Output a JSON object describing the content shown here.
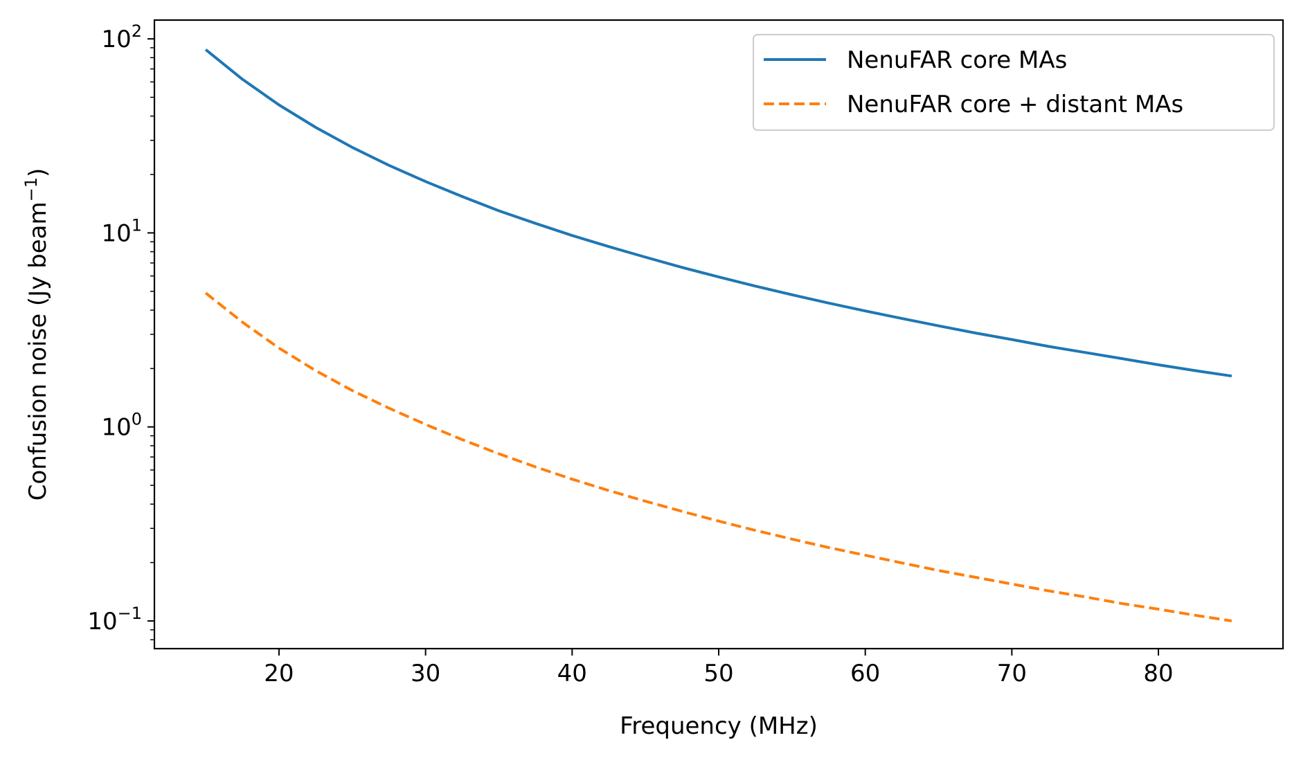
{
  "chart_data": {
    "type": "line",
    "title": "",
    "xlabel": "Frequency (MHz)",
    "ylabel_main": "Confusion noise (Jy beam",
    "ylabel_sup": "−1",
    "ylabel_close": ")",
    "xlim": [
      11.5,
      88.5
    ],
    "ylim": [
      0.072,
      125
    ],
    "yscale": "log",
    "grid": false,
    "legend_position": "top-right",
    "x_ticks": [
      20,
      30,
      40,
      50,
      60,
      70,
      80
    ],
    "x_tick_labels": [
      "20",
      "30",
      "40",
      "50",
      "60",
      "70",
      "80"
    ],
    "y_ticks": [
      0.1,
      1,
      10,
      100
    ],
    "y_tick_labels": [
      {
        "base": "10",
        "exp": "−1"
      },
      {
        "base": "10",
        "exp": "0"
      },
      {
        "base": "10",
        "exp": "1"
      },
      {
        "base": "10",
        "exp": "2"
      }
    ],
    "x": [
      15,
      17.5,
      20,
      22.5,
      25,
      27.5,
      30,
      32.5,
      35,
      37.5,
      40,
      42.5,
      45,
      47.5,
      50,
      52.5,
      55,
      57.5,
      60,
      62.5,
      65,
      67.5,
      70,
      72.5,
      75,
      77.5,
      80,
      82.5,
      85
    ],
    "series": [
      {
        "name": "NenuFAR core MAs",
        "color": "#1f77b4",
        "dash": "solid",
        "values": [
          88,
          62,
          45.7,
          35,
          27.6,
          22.3,
          18.4,
          15.4,
          13.0,
          11.2,
          9.7,
          8.5,
          7.5,
          6.64,
          5.93,
          5.32,
          4.8,
          4.35,
          3.96,
          3.62,
          3.32,
          3.05,
          2.82,
          2.6,
          2.42,
          2.25,
          2.09,
          1.95,
          1.83
        ]
      },
      {
        "name": "NenuFAR core + distant MAs",
        "color": "#ff7f0e",
        "dash": "dashed",
        "values": [
          4.9,
          3.47,
          2.55,
          1.95,
          1.54,
          1.25,
          1.03,
          0.86,
          0.727,
          0.622,
          0.538,
          0.47,
          0.414,
          0.367,
          0.327,
          0.293,
          0.264,
          0.239,
          0.218,
          0.199,
          0.182,
          0.168,
          0.155,
          0.143,
          0.133,
          0.123,
          0.115,
          0.107,
          0.1
        ]
      }
    ]
  }
}
